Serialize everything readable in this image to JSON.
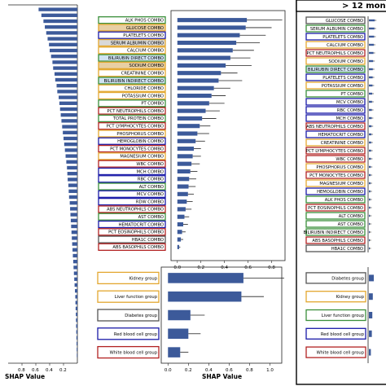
{
  "chart_data": [
    {
      "panel": "left-overview",
      "type": "bar",
      "orientation": "horizontal",
      "xlabel": "SHAP Value",
      "xticks": [
        "0.2",
        "0.4",
        "0.6",
        "0.8"
      ],
      "xlim": [
        0,
        1.0
      ],
      "values": [
        0.56,
        0.52,
        0.49,
        0.47,
        0.45,
        0.43,
        0.41,
        0.4,
        0.38,
        0.36,
        0.35,
        0.33,
        0.32,
        0.3,
        0.29,
        0.27,
        0.26,
        0.25,
        0.24,
        0.23,
        0.22,
        0.21,
        0.2,
        0.19,
        0.18,
        0.17,
        0.16,
        0.15,
        0.145,
        0.14,
        0.13,
        0.125,
        0.12,
        0.11,
        0.105,
        0.1,
        0.095,
        0.09,
        0.085,
        0.08,
        0.075,
        0.07,
        0.065,
        0.06,
        0.055,
        0.05,
        0.045,
        0.04,
        0.035,
        0.03,
        0.028,
        0.025,
        0.022,
        0.02,
        0.018,
        0.016,
        0.014,
        0.012,
        0.01,
        0.008
      ]
    },
    {
      "panel": "middle-features",
      "type": "bar",
      "orientation": "horizontal",
      "xticks": [
        "0.0",
        "0.2",
        "0.4",
        "0.6",
        "0.8"
      ],
      "xlim": [
        -0.04,
        0.9
      ],
      "categories": [
        "ALK PHOS COMBO",
        "GLUCOSE COMBO",
        "PLATELETS COMBO",
        "SERUM ALBUMIN COMBO",
        "CALCIUM COMBO",
        "BILIRUBIN DIRECT COMBO",
        "SODIUM COMBO",
        "CREATININE COMBO",
        "BILIRUBIN INDIRECT COMBO",
        "CHLORIDE COMBO",
        "POTASSIUM COMBO",
        "PT COMBO",
        "PCT NEUTROPHILS COMBO",
        "TOTAL PROTEIN COMBO",
        "PCT LYMPHOCYTES COMBO",
        "PHOSPHORUS COMBO",
        "HEMOGLOBIN COMBO",
        "PCT MONOCYTES COMBO",
        "MAGNESIUM COMBO",
        "WBC COMBO",
        "MCH COMBO",
        "RBC COMBO",
        "ALT COMBO",
        "MCV COMBO",
        "RDW COMBO",
        "ABS NEUTROPHILS COMBO",
        "AST COMBO",
        "HEMATOCRIT COMBO",
        "PCT EOSINOPHILS COMBO",
        "HBA1C COMBO",
        "ABS BASOPHILS COMBO"
      ],
      "values": [
        0.59,
        0.58,
        0.53,
        0.5,
        0.47,
        0.45,
        0.41,
        0.37,
        0.35,
        0.31,
        0.29,
        0.27,
        0.24,
        0.21,
        0.19,
        0.17,
        0.155,
        0.14,
        0.13,
        0.12,
        0.11,
        0.1,
        0.095,
        0.09,
        0.08,
        0.07,
        0.06,
        0.05,
        0.04,
        0.03,
        0.015
      ],
      "errors": [
        0.3,
        0.22,
        0.22,
        0.2,
        0.18,
        0.17,
        0.22,
        0.14,
        0.2,
        0.14,
        0.12,
        0.13,
        0.12,
        0.12,
        0.09,
        0.1,
        0.08,
        0.06,
        0.07,
        0.07,
        0.06,
        0.06,
        0.06,
        0.05,
        0.05,
        0.05,
        0.04,
        0.04,
        0.03,
        0.02,
        0.01
      ],
      "group_colors": [
        "#3a8f3a",
        "#e3a72f",
        "#1a1aa8",
        "#e3a72f",
        "#e3a72f",
        "#3a8f3a",
        "#e3a72f",
        "#e3a72f",
        "#3a8f3a",
        "#e3a72f",
        "#e3a72f",
        "#3a8f3a",
        "#b22222",
        "#3a8f3a",
        "#b22222",
        "#e3a72f",
        "#1a1aa8",
        "#b22222",
        "#e3a72f",
        "#b22222",
        "#1a1aa8",
        "#1a1aa8",
        "#3a8f3a",
        "#1a1aa8",
        "#1a1aa8",
        "#b22222",
        "#3a8f3a",
        "#1a1aa8",
        "#b22222",
        "#555555",
        "#b22222"
      ],
      "label_fills": [
        "#ffffff",
        "#e8cfa4",
        "#ffffff",
        "#d9d9d9",
        "#ffffff",
        "#cfe3f2",
        "#e8cfa4",
        "#ffffff",
        "#cfe3f2",
        "#ffffff",
        "#ffffff",
        "#ffffff",
        "#ffffff",
        "#ffffff",
        "#ffffff",
        "#ffffff",
        "#ffffff",
        "#ffffff",
        "#ffffff",
        "#ffffff",
        "#ffffff",
        "#ffffff",
        "#ffffff",
        "#ffffff",
        "#ffffff",
        "#ffffff",
        "#ffffff",
        "#ffffff",
        "#ffffff",
        "#ffffff",
        "#ffffff"
      ]
    },
    {
      "panel": "middle-groups",
      "type": "bar",
      "orientation": "horizontal",
      "xlabel": "SHAP Value",
      "xticks": [
        "0.0",
        "0.2",
        "0.4",
        "0.6",
        "0.8",
        "1.0"
      ],
      "xlim": [
        -0.05,
        1.1
      ],
      "categories": [
        "Kidney group",
        "Liver function group",
        "Diabetes group",
        "Red blood cell group",
        "White blood cell group"
      ],
      "values": [
        0.74,
        0.72,
        0.22,
        0.2,
        0.12
      ],
      "errors": [
        0.4,
        0.22,
        0.14,
        0.12,
        0.08
      ],
      "group_colors": [
        "#e3a72f",
        "#e3a72f",
        "#555555",
        "#1a1aa8",
        "#b22222"
      ]
    },
    {
      "panel": "right-features",
      "type": "bar",
      "orientation": "horizontal",
      "title": "> 12 mon",
      "categories": [
        "GLUCOSE COMBO",
        "SERUM ALBUMIN COMBO",
        "PLATELETS COMBO",
        "CALCIUM COMBO",
        "PCT NEUTROPHILS COMBO",
        "SODIUM COMBO",
        "BILIRUBIN DIRECT COMBO",
        "PLATELETS COMBO",
        "POTASSIUM COMBO",
        "PT COMBO",
        "MCV COMBO",
        "RBC COMBO",
        "MCH COMBO",
        "ABS NEUTROPHILS COMBO",
        "HEMATOCRIT COMBO",
        "CREATININE COMBO",
        "PCT LYMPHOCYTES COMBO",
        "WBC COMBO",
        "PHOSPHORUS COMBO",
        "PCT MONOCYTES COMBO",
        "MAGNESIUM COMBO",
        "HEMOGLOBIN COMBO",
        "ALK PHOS COMBO",
        "PCT EOSINOPHILS COMBO",
        "ALT COMBO",
        "AST COMBO",
        "BILIRUBIN INDIRECT COMBO",
        "ABS BASOPHILS COMBO",
        "HBA1C COMBO"
      ],
      "values": [
        0.09,
        0.085,
        0.08,
        0.075,
        0.07,
        0.065,
        0.06,
        0.058,
        0.055,
        0.05,
        0.048,
        0.045,
        0.043,
        0.04,
        0.038,
        0.035,
        0.033,
        0.03,
        0.028,
        0.026,
        0.024,
        0.022,
        0.02,
        0.018,
        0.016,
        0.014,
        0.012,
        0.01,
        0.008
      ],
      "group_colors": [
        "#555555",
        "#3a8f3a",
        "#1a1aa8",
        "#e3a72f",
        "#b22222",
        "#e3a72f",
        "#3a8f3a",
        "#1a1aa8",
        "#e3a72f",
        "#3a8f3a",
        "#1a1aa8",
        "#1a1aa8",
        "#1a1aa8",
        "#b22222",
        "#1a1aa8",
        "#e3a72f",
        "#b22222",
        "#b22222",
        "#e3a72f",
        "#b22222",
        "#e3a72f",
        "#1a1aa8",
        "#3a8f3a",
        "#b22222",
        "#3a8f3a",
        "#3a8f3a",
        "#3a8f3a",
        "#b22222",
        "#555555"
      ],
      "label_fills": [
        "#ffffff",
        "#ffffff",
        "#ffffff",
        "#ffffff",
        "#ffffff",
        "#ffffff",
        "#cfe3f2",
        "#ffffff",
        "#ffffff",
        "#ffffff",
        "#ffffff",
        "#ffffff",
        "#ffffff",
        "#ffffff",
        "#ffffff",
        "#ffffff",
        "#ffffff",
        "#ffffff",
        "#ffffff",
        "#ffffff",
        "#ffffff",
        "#ffffff",
        "#ffffff",
        "#ffffff",
        "#ffffff",
        "#ffffff",
        "#ffffff",
        "#ffffff",
        "#ffffff"
      ]
    },
    {
      "panel": "right-groups",
      "type": "bar",
      "orientation": "horizontal",
      "categories": [
        "Diabetes group",
        "Kidney group",
        "Liver function group",
        "Red blood cell group",
        "White blood cell group"
      ],
      "values": [
        0.05,
        0.04,
        0.035,
        0.03,
        0.02
      ],
      "group_colors": [
        "#555555",
        "#e3a72f",
        "#3a8f3a",
        "#1a1aa8",
        "#b22222"
      ]
    }
  ],
  "style": {
    "bar_color": "#3c5a9a",
    "error_color": "#222222",
    "axis_color": "#222222",
    "frame_color": "#000000"
  }
}
